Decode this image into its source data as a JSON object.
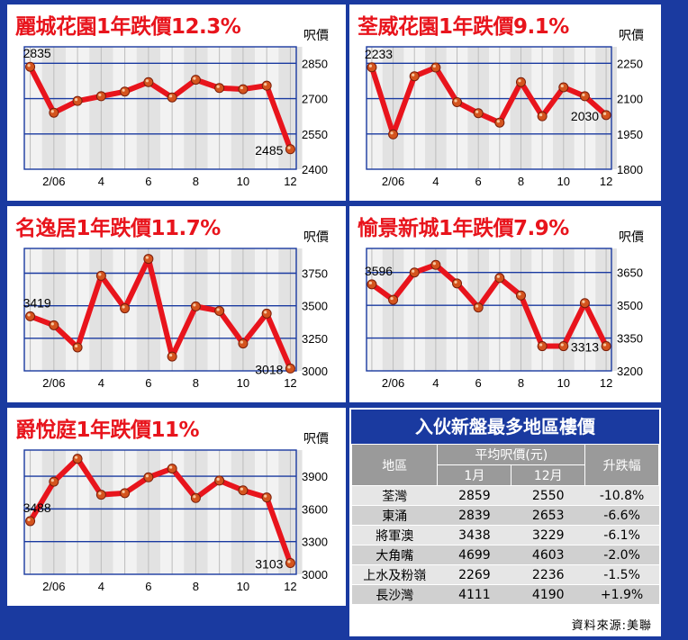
{
  "chart_data": [
    {
      "type": "line",
      "title": "麗城花園1年跌價12.3%",
      "ylabel": "呎價",
      "x": [
        1,
        2,
        3,
        4,
        5,
        6,
        7,
        8,
        9,
        10,
        11,
        12
      ],
      "xticks": [
        "2/06",
        "4",
        "6",
        "8",
        "10",
        "12"
      ],
      "values": [
        2835,
        2640,
        2690,
        2710,
        2730,
        2770,
        2705,
        2780,
        2745,
        2740,
        2755,
        2485
      ],
      "yticks": [
        2400,
        2550,
        2700,
        2850
      ],
      "ylim": [
        2400,
        2920
      ],
      "annotations": [
        "2835",
        "2485"
      ],
      "colors": {
        "line": "#e8141c"
      }
    },
    {
      "type": "line",
      "title": "荃威花園1年跌價9.1%",
      "ylabel": "呎價",
      "x": [
        1,
        2,
        3,
        4,
        5,
        6,
        7,
        8,
        9,
        10,
        11,
        12
      ],
      "xticks": [
        "2/06",
        "4",
        "6",
        "8",
        "10",
        "12"
      ],
      "values": [
        2233,
        1948,
        2195,
        2232,
        2085,
        2038,
        1998,
        2170,
        2025,
        2148,
        2110,
        2030
      ],
      "yticks": [
        1800,
        1950,
        2100,
        2250
      ],
      "ylim": [
        1800,
        2320
      ],
      "annotations": [
        "2233",
        "2030"
      ],
      "colors": {
        "line": "#e8141c"
      }
    },
    {
      "type": "line",
      "title": "名逸居1年跌價11.7%",
      "ylabel": "呎價",
      "x": [
        1,
        2,
        3,
        4,
        5,
        6,
        7,
        8,
        9,
        10,
        11,
        12
      ],
      "xticks": [
        "2/06",
        "4",
        "6",
        "8",
        "10",
        "12"
      ],
      "values": [
        3419,
        3350,
        3180,
        3730,
        3480,
        3860,
        3110,
        3495,
        3460,
        3210,
        3440,
        3018
      ],
      "yticks": [
        3000,
        3250,
        3500,
        3750
      ],
      "ylim": [
        3000,
        3940
      ],
      "annotations": [
        "3419",
        "3018"
      ],
      "colors": {
        "line": "#e8141c"
      }
    },
    {
      "type": "line",
      "title": "愉景新城1年跌價7.9%",
      "ylabel": "呎價",
      "x": [
        1,
        2,
        3,
        4,
        5,
        6,
        7,
        8,
        9,
        10,
        11,
        12
      ],
      "xticks": [
        "2/06",
        "4",
        "6",
        "8",
        "10",
        "12"
      ],
      "values": [
        3596,
        3525,
        3650,
        3685,
        3600,
        3490,
        3625,
        3545,
        3313,
        3313,
        3510,
        3313
      ],
      "yticks": [
        3200,
        3350,
        3500,
        3650
      ],
      "ylim": [
        3200,
        3760
      ],
      "annotations": [
        "3596",
        "3313"
      ],
      "colors": {
        "line": "#e8141c"
      }
    },
    {
      "type": "line",
      "title": "爵悅庭1年跌價11%",
      "ylabel": "呎價",
      "x": [
        1,
        2,
        3,
        4,
        5,
        6,
        7,
        8,
        9,
        10,
        11,
        12
      ],
      "xticks": [
        "2/06",
        "4",
        "6",
        "8",
        "10",
        "12"
      ],
      "values": [
        3488,
        3850,
        4060,
        3730,
        3745,
        3890,
        3970,
        3700,
        3860,
        3770,
        3705,
        3103
      ],
      "yticks": [
        3000,
        3300,
        3600,
        3900
      ],
      "ylim": [
        3000,
        4140
      ],
      "annotations": [
        "3488",
        "3103"
      ],
      "colors": {
        "line": "#e8141c"
      }
    },
    {
      "type": "table",
      "title": "入伙新盤最多地區樓價",
      "headers": {
        "district": "地區",
        "avg": "平均呎價(元)",
        "jan": "1月",
        "dec": "12月",
        "change": "升跌幅"
      },
      "rows": [
        {
          "district": "荃灣",
          "jan": "2859",
          "dec": "2550",
          "change": "-10.8%"
        },
        {
          "district": "東涌",
          "jan": "2839",
          "dec": "2653",
          "change": "-6.6%"
        },
        {
          "district": "將軍澳",
          "jan": "3438",
          "dec": "3229",
          "change": "-6.1%"
        },
        {
          "district": "大角嘴",
          "jan": "4699",
          "dec": "4603",
          "change": "-2.0%"
        },
        {
          "district": "上水及粉嶺",
          "jan": "2269",
          "dec": "2236",
          "change": "-1.5%"
        },
        {
          "district": "長沙灣",
          "jan": "4111",
          "dec": "4190",
          "change": "+1.9%"
        }
      ],
      "source": "資料來源:美聯"
    }
  ]
}
